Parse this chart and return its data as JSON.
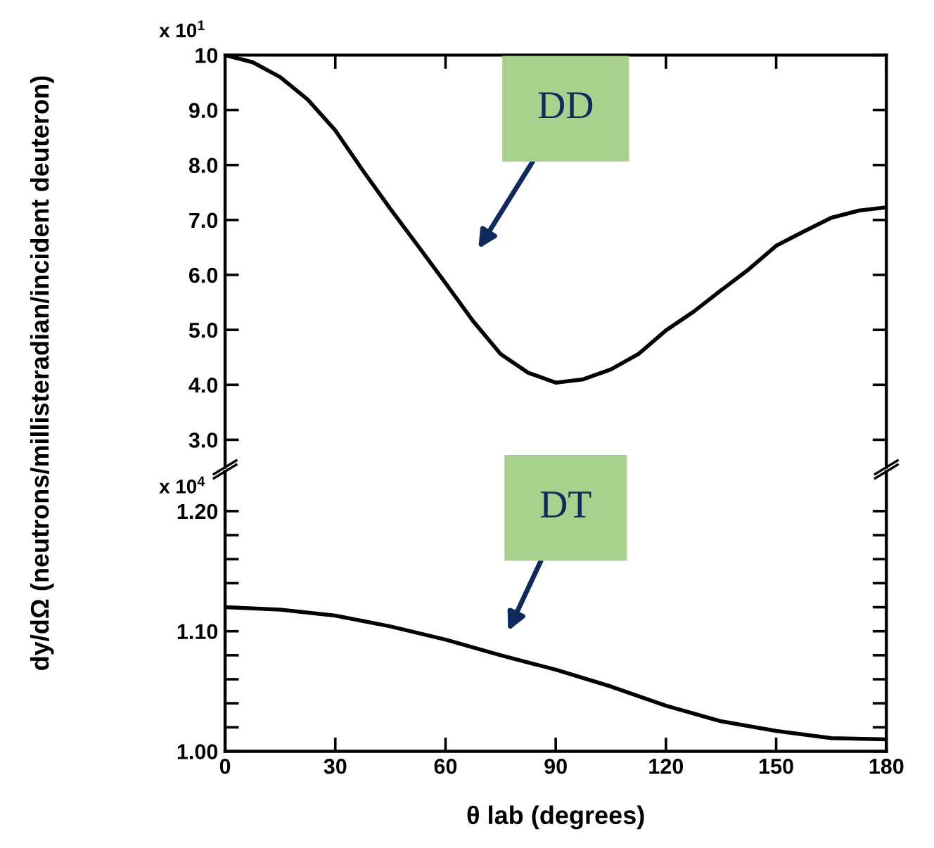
{
  "chart_data": [
    {
      "type": "line",
      "ylabel": "dy/dΩ (neutrons/millisteradian/incident deuteron)",
      "x": [
        0,
        7.5,
        15,
        22.5,
        30,
        37.5,
        45,
        52.5,
        60,
        67.5,
        75,
        82.5,
        90,
        97.5,
        105,
        112.5,
        120,
        127.5,
        135,
        142.5,
        150,
        157.5,
        165,
        172.5,
        180
      ],
      "series": [
        {
          "color": "#000000",
          "values": [
            10.0,
            9.87,
            9.6,
            9.19,
            8.63,
            7.9,
            7.2,
            6.53,
            5.85,
            5.16,
            4.56,
            4.22,
            4.04,
            4.1,
            4.28,
            4.56,
            4.99,
            5.33,
            5.72,
            6.1,
            6.53,
            6.79,
            7.04,
            7.17,
            7.23
          ]
        }
      ],
      "xlim": [
        0,
        180
      ],
      "xticks": [
        {
          "value": 0,
          "label": null
        },
        {
          "value": 30,
          "label": null
        },
        {
          "value": 60,
          "label": null
        },
        {
          "value": 90,
          "label": null
        },
        {
          "value": 120,
          "label": null
        },
        {
          "value": 150,
          "label": null
        },
        {
          "value": 180,
          "label": null
        }
      ],
      "ylim": [
        2.5,
        10
      ],
      "yticks": [
        {
          "value": 3,
          "label": "3.0"
        },
        {
          "value": 4,
          "label": "4.0"
        },
        {
          "value": 5,
          "label": "5.0"
        },
        {
          "value": 6,
          "label": "6.0"
        },
        {
          "value": 7,
          "label": "7.0"
        },
        {
          "value": 8,
          "label": "8.0"
        },
        {
          "value": 9,
          "label": "9.0"
        },
        10
      ],
      "tick_labels": "y",
      "grid": false,
      "legend": false,
      "marker": "none",
      "line_style": "solid",
      "annotations": [
        "x 10$^{1}$",
        "DD"
      ]
    },
    {
      "type": "line",
      "xlabel": "θ lab (degrees)",
      "x": [
        0,
        15,
        30,
        45,
        60,
        75,
        90,
        105,
        120,
        135,
        150,
        165,
        180
      ],
      "series": [
        {
          "color": "#000000",
          "values": [
            1.12,
            1.118,
            1.113,
            1.104,
            1.093,
            1.08,
            1.068,
            1.054,
            1.038,
            1.025,
            1.017,
            1.011,
            1.01
          ]
        }
      ],
      "xlim": [
        0,
        180
      ],
      "xticks": [
        0,
        30,
        60,
        90,
        120,
        150,
        180
      ],
      "ylim": [
        1.0,
        1.233
      ],
      "yticks": [
        {
          "value": 1.0,
          "label": "1.00"
        },
        {
          "value": 1.02,
          "label": null
        },
        {
          "value": 1.04,
          "label": null
        },
        {
          "value": 1.06,
          "label": null
        },
        {
          "value": 1.08,
          "label": null
        },
        {
          "value": 1.1,
          "label": "1.10"
        },
        {
          "value": 1.12,
          "label": null
        },
        {
          "value": 1.14,
          "label": null
        },
        {
          "value": 1.16,
          "label": null
        },
        {
          "value": 1.18,
          "label": null
        },
        {
          "value": 1.2,
          "label": "1.20"
        }
      ],
      "grid": false,
      "legend": false,
      "marker": "none",
      "line_style": "solid",
      "annotations": [
        "x 10$^{4}$",
        "DT"
      ]
    }
  ]
}
